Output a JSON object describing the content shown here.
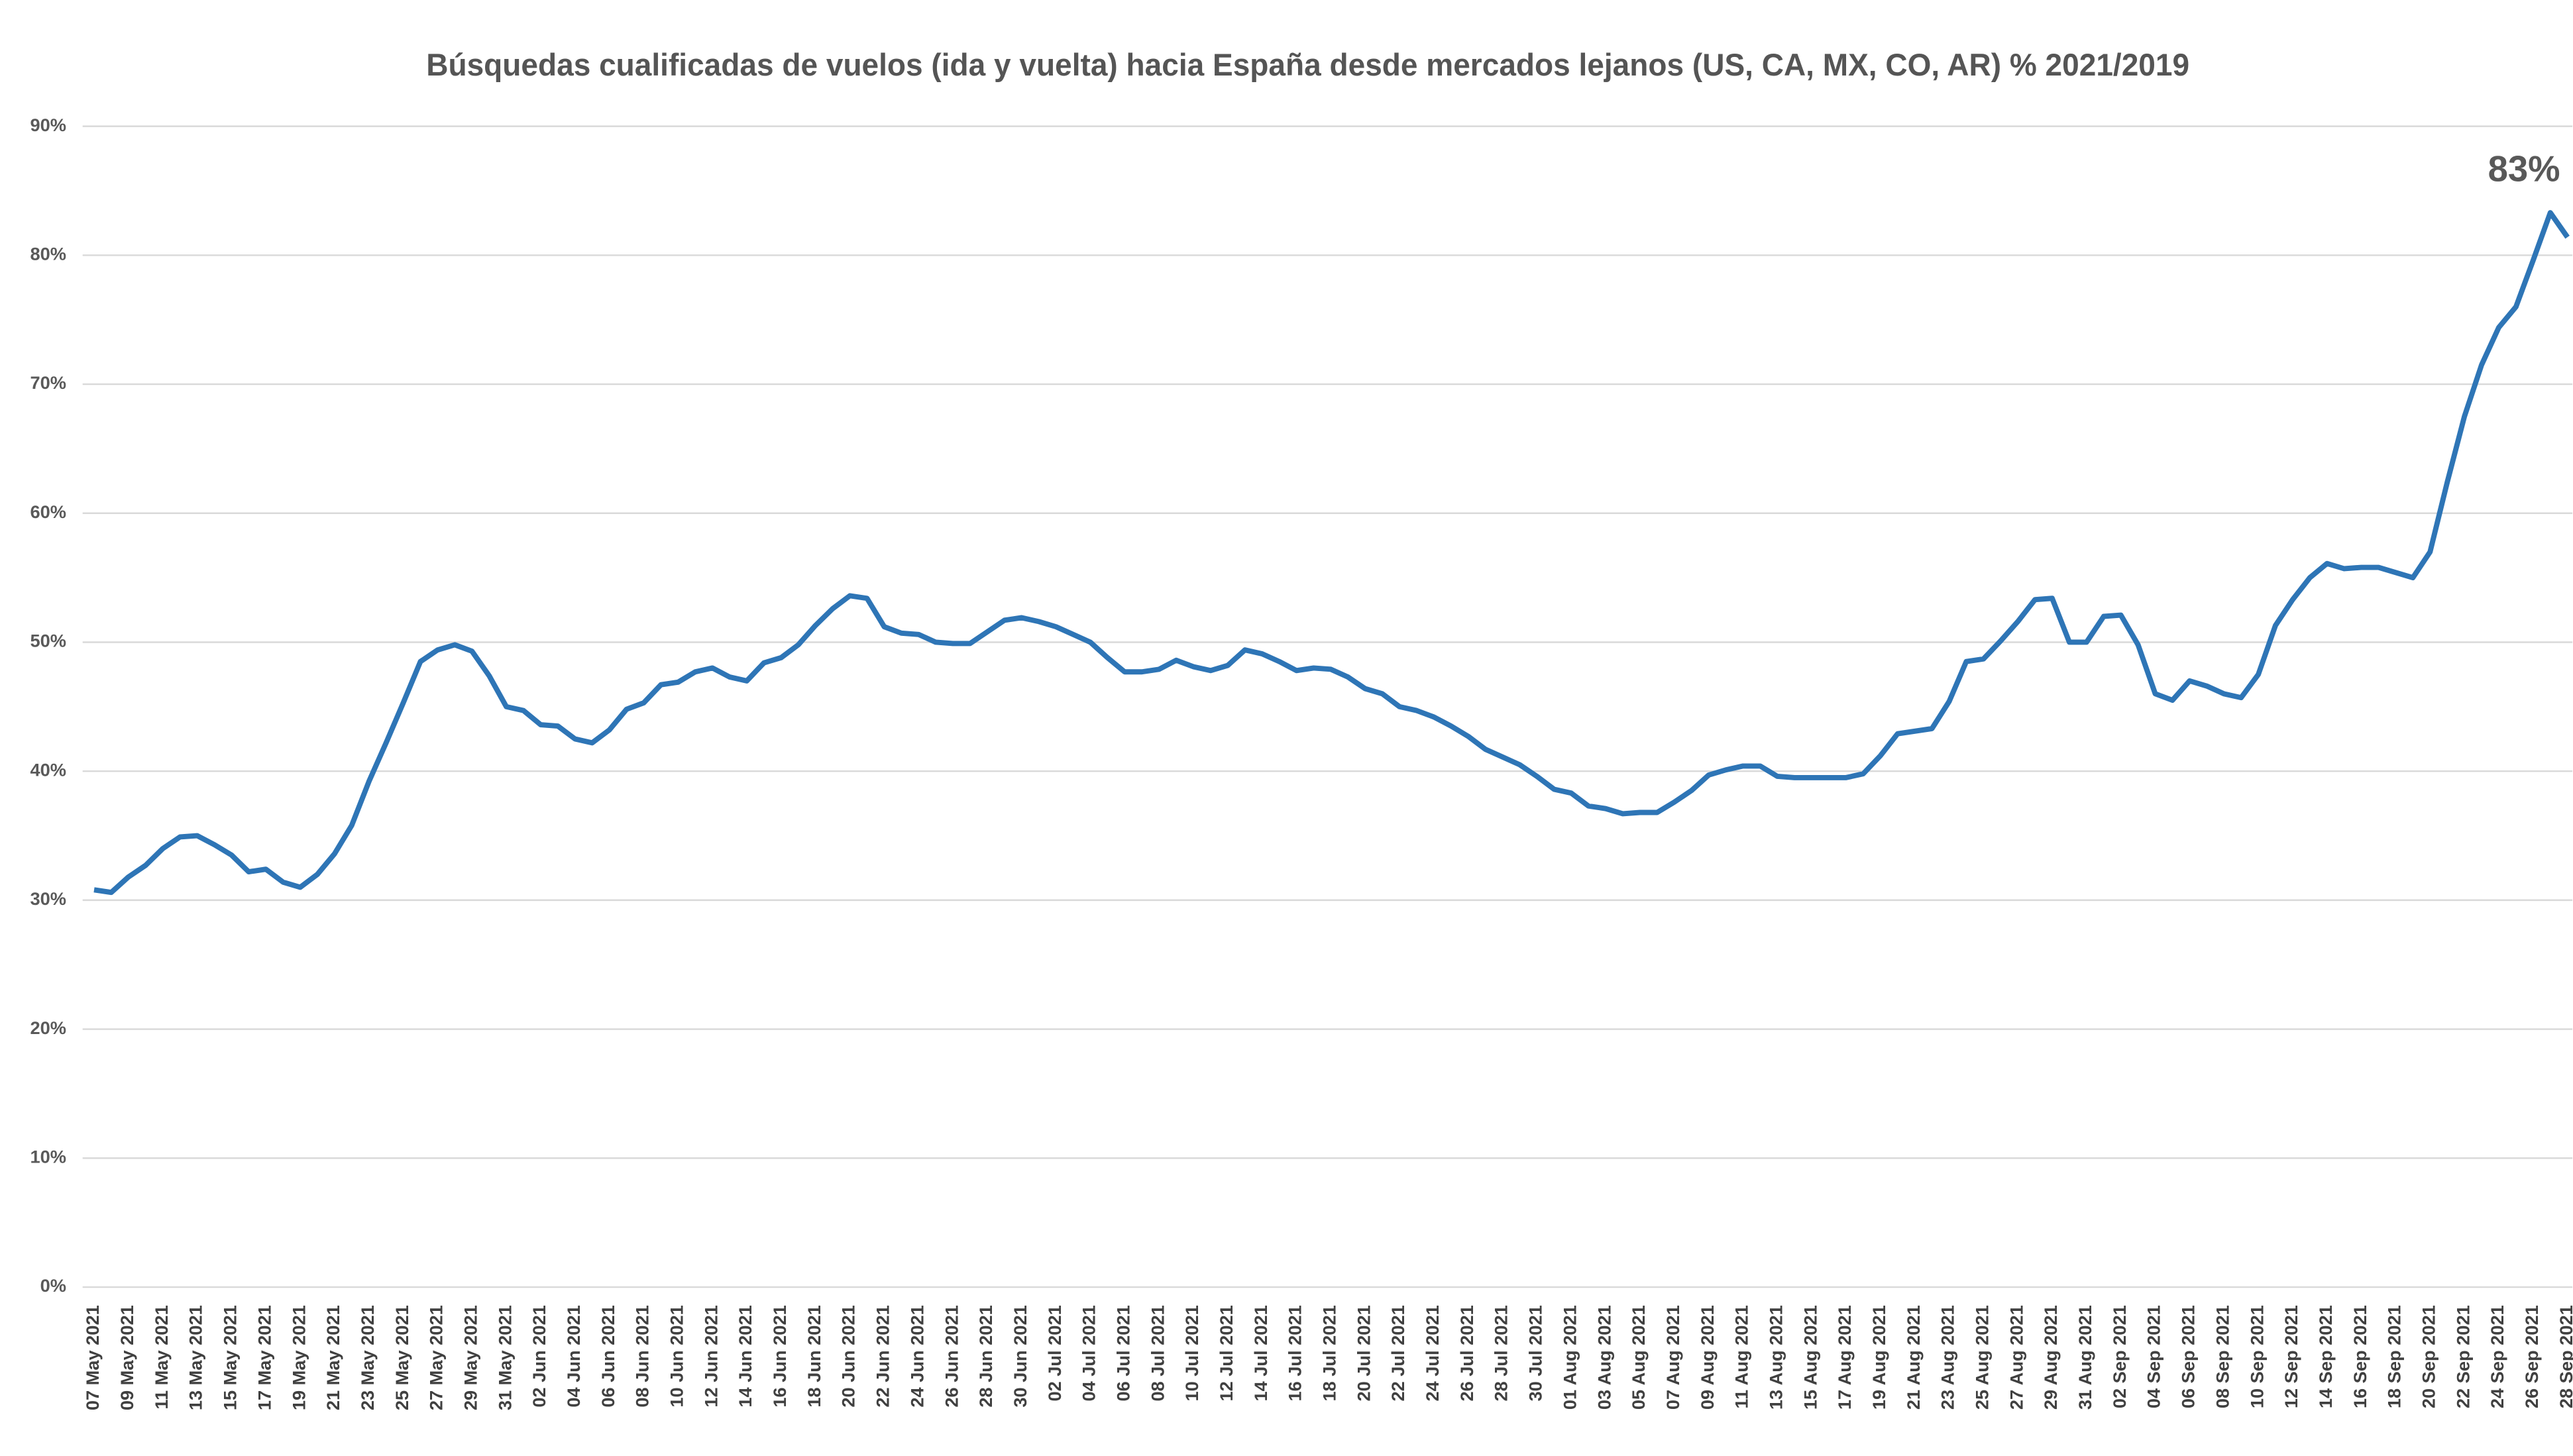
{
  "chart_data": {
    "type": "line",
    "title": "Búsquedas cualificadas de vuelos (ida y vuelta) hacia España desde mercados lejanos (US, CA, MX, CO, AR) % 2021/2019",
    "categories": [
      "07 May 2021",
      null,
      "09 May 2021",
      null,
      "11 May 2021",
      null,
      "13 May 2021",
      null,
      "15 May 2021",
      null,
      "17 May 2021",
      null,
      "19 May 2021",
      null,
      "21 May 2021",
      null,
      "23 May 2021",
      null,
      "25 May 2021",
      null,
      "27 May 2021",
      null,
      "29 May 2021",
      null,
      "31 May 2021",
      null,
      "02 Jun 2021",
      null,
      "04 Jun 2021",
      null,
      "06 Jun 2021",
      null,
      "08 Jun 2021",
      null,
      "10 Jun 2021",
      null,
      "12 Jun 2021",
      null,
      "14 Jun 2021",
      null,
      "16 Jun 2021",
      null,
      "18 Jun 2021",
      null,
      "20 Jun 2021",
      null,
      "22 Jun 2021",
      null,
      "24 Jun 2021",
      null,
      "26 Jun 2021",
      null,
      "28 Jun 2021",
      null,
      "30 Jun 2021",
      null,
      "02 Jul 2021",
      null,
      "04 Jul 2021",
      null,
      "06 Jul 2021",
      null,
      "08 Jul 2021",
      null,
      "10 Jul 2021",
      null,
      "12 Jul 2021",
      null,
      "14 Jul 2021",
      null,
      "16 Jul 2021",
      null,
      "18 Jul 2021",
      null,
      "20 Jul 2021",
      null,
      "22 Jul 2021",
      null,
      "24 Jul 2021",
      null,
      "26 Jul 2021",
      null,
      "28 Jul 2021",
      null,
      "30 Jul 2021",
      null,
      "01 Aug 2021",
      null,
      "03 Aug 2021",
      null,
      "05 Aug 2021",
      null,
      "07 Aug 2021",
      null,
      "09 Aug 2021",
      null,
      "11 Aug 2021",
      null,
      "13 Aug 2021",
      null,
      "15 Aug 2021",
      null,
      "17 Aug 2021",
      null,
      "19 Aug 2021",
      null,
      "21 Aug 2021",
      null,
      "23 Aug 2021",
      null,
      "25 Aug 2021",
      null,
      "27 Aug 2021",
      null,
      "29 Aug 2021",
      null,
      "31 Aug 2021",
      null,
      "02 Sep 2021",
      null,
      "04 Sep 2021",
      null,
      "06 Sep 2021",
      null,
      "08 Sep 2021",
      null,
      "10 Sep 2021",
      null,
      "12 Sep 2021",
      null,
      "14 Sep 2021",
      null,
      "16 Sep 2021",
      null,
      "18 Sep 2021",
      null,
      "20 Sep 2021",
      null,
      "22 Sep 2021",
      null,
      "24 Sep 2021",
      null,
      "26 Sep 2021",
      null,
      "28 Sep 2021"
    ],
    "series": [
      {
        "name": null,
        "color": "#2e75b6",
        "values": [
          30.8,
          30.6,
          31.8,
          32.7,
          34.0,
          34.9,
          35.0,
          34.3,
          33.5,
          32.2,
          32.4,
          31.4,
          31.0,
          32.0,
          33.6,
          35.8,
          39.2,
          42.2,
          45.3,
          48.5,
          49.4,
          49.8,
          49.3,
          47.4,
          45.0,
          44.7,
          43.6,
          43.5,
          42.5,
          42.2,
          43.2,
          44.8,
          45.3,
          46.7,
          46.9,
          47.7,
          48.0,
          47.3,
          47.0,
          48.4,
          48.8,
          49.8,
          51.3,
          52.6,
          53.6,
          53.4,
          51.2,
          50.7,
          50.6,
          50.0,
          49.9,
          49.9,
          50.8,
          51.7,
          51.9,
          51.6,
          51.2,
          50.6,
          50.0,
          48.8,
          47.7,
          47.7,
          47.9,
          48.6,
          48.1,
          47.8,
          48.2,
          49.4,
          49.1,
          48.5,
          47.8,
          48.0,
          47.9,
          47.3,
          46.4,
          46.0,
          45.0,
          44.7,
          44.2,
          43.5,
          42.7,
          41.7,
          41.1,
          40.5,
          39.6,
          38.6,
          38.3,
          37.3,
          37.1,
          36.7,
          36.8,
          36.8,
          37.6,
          38.5,
          39.7,
          40.1,
          40.4,
          40.4,
          39.6,
          39.5,
          39.5,
          39.5,
          39.5,
          39.8,
          41.2,
          42.9,
          43.1,
          43.3,
          45.4,
          48.5,
          48.7,
          50.1,
          51.6,
          53.3,
          53.4,
          50.0,
          50.0,
          52.0,
          52.1,
          49.8,
          46.0,
          45.5,
          47.0,
          46.6,
          46.0,
          45.7,
          47.5,
          51.3,
          53.3,
          55.0,
          56.1,
          55.7,
          55.8,
          55.8,
          55.4,
          55.0,
          57.0,
          62.4,
          67.5,
          71.5,
          74.4,
          76.0,
          79.6,
          83.3,
          81.4
        ],
        "value_labels": [
          null,
          null,
          null,
          null,
          null,
          null,
          null,
          null,
          null,
          null,
          null,
          null,
          null,
          null,
          null,
          null,
          null,
          null,
          null,
          null,
          null,
          null,
          null,
          null,
          null,
          null,
          null,
          null,
          null,
          null,
          null,
          null,
          null,
          null,
          null,
          null,
          null,
          null,
          null,
          null,
          null,
          null,
          null,
          null,
          null,
          null,
          null,
          null,
          null,
          null,
          null,
          null,
          null,
          null,
          null,
          null,
          null,
          null,
          null,
          null,
          null,
          null,
          null,
          null,
          null,
          null,
          null,
          null,
          null,
          null,
          null,
          null,
          null,
          null,
          null,
          null,
          null,
          null,
          null,
          null,
          null,
          null,
          null,
          null,
          null,
          null,
          null,
          null,
          null,
          null,
          null,
          null,
          null,
          null,
          null,
          null,
          null,
          null,
          null,
          null,
          null,
          null,
          null,
          null,
          null,
          null,
          null,
          null,
          null,
          null,
          null,
          null,
          null,
          null,
          null,
          null,
          null,
          null,
          null,
          null,
          null,
          null,
          null,
          null,
          null,
          null,
          null,
          null,
          null,
          null,
          null,
          null,
          null,
          null,
          null,
          null,
          null,
          null,
          null,
          null,
          null,
          null,
          null,
          "83%",
          null
        ]
      }
    ],
    "ylim": [
      0,
      90
    ],
    "yticks": [
      {
        "value": 0,
        "label": "0%"
      },
      {
        "value": 10,
        "label": "10%"
      },
      {
        "value": 20,
        "label": "20%"
      },
      {
        "value": 30,
        "label": "30%"
      },
      {
        "value": 40,
        "label": "40%"
      },
      {
        "value": 50,
        "label": "50%"
      },
      {
        "value": 60,
        "label": "60%"
      },
      {
        "value": 70,
        "label": "70%"
      },
      {
        "value": 80,
        "label": "80%"
      },
      {
        "value": 90,
        "label": "90%"
      }
    ],
    "grid": true
  }
}
